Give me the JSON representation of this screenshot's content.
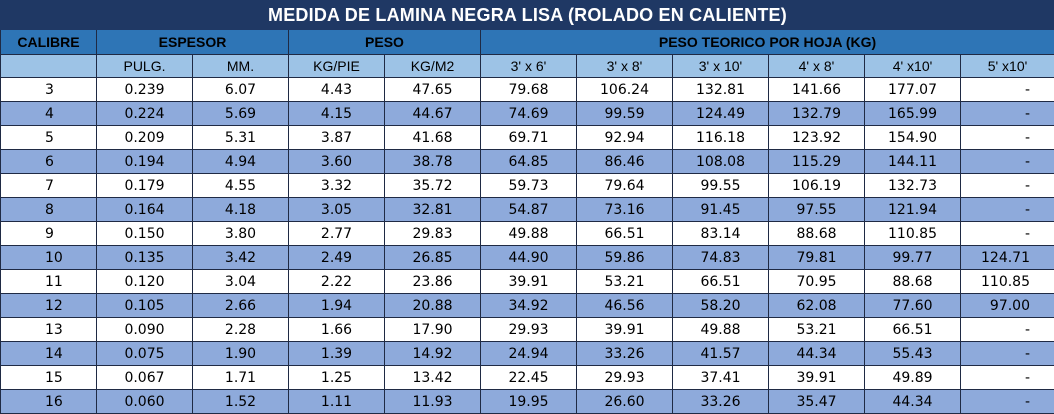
{
  "title": "MEDIDA DE LAMINA NEGRA LISA (ROLADO EN CALIENTE)",
  "headers": {
    "calibre": "CALIBRE",
    "espesor": "ESPESOR",
    "peso": "PESO",
    "peso_teorico": "PESO TEORICO POR HOJA (KG)"
  },
  "subheaders": [
    "PULG.",
    "MM.",
    "KG/PIE",
    "KG/M2",
    "3' x 6'",
    "3' x 8'",
    "3' x 10'",
    "4' x 8'",
    "4' x10'",
    "5' x10'"
  ],
  "rows": [
    [
      "3",
      "0.239",
      "6.07",
      "4.43",
      "47.65",
      "79.68",
      "106.24",
      "132.81",
      "141.66",
      "177.07",
      "-"
    ],
    [
      "4",
      "0.224",
      "5.69",
      "4.15",
      "44.67",
      "74.69",
      "99.59",
      "124.49",
      "132.79",
      "165.99",
      "-"
    ],
    [
      "5",
      "0.209",
      "5.31",
      "3.87",
      "41.68",
      "69.71",
      "92.94",
      "116.18",
      "123.92",
      "154.90",
      "-"
    ],
    [
      "6",
      "0.194",
      "4.94",
      "3.60",
      "38.78",
      "64.85",
      "86.46",
      "108.08",
      "115.29",
      "144.11",
      "-"
    ],
    [
      "7",
      "0.179",
      "4.55",
      "3.32",
      "35.72",
      "59.73",
      "79.64",
      "99.55",
      "106.19",
      "132.73",
      "-"
    ],
    [
      "8",
      "0.164",
      "4.18",
      "3.05",
      "32.81",
      "54.87",
      "73.16",
      "91.45",
      "97.55",
      "121.94",
      "-"
    ],
    [
      "9",
      "0.150",
      "3.80",
      "2.77",
      "29.83",
      "49.88",
      "66.51",
      "83.14",
      "88.68",
      "110.85",
      "-"
    ],
    [
      "10",
      "0.135",
      "3.42",
      "2.49",
      "26.85",
      "44.90",
      "59.86",
      "74.83",
      "79.81",
      "99.77",
      "124.71"
    ],
    [
      "11",
      "0.120",
      "3.04",
      "2.22",
      "23.86",
      "39.91",
      "53.21",
      "66.51",
      "70.95",
      "88.68",
      "110.85"
    ],
    [
      "12",
      "0.105",
      "2.66",
      "1.94",
      "20.88",
      "34.92",
      "46.56",
      "58.20",
      "62.08",
      "77.60",
      "97.00"
    ],
    [
      "13",
      "0.090",
      "2.28",
      "1.66",
      "17.90",
      "29.93",
      "39.91",
      "49.88",
      "53.21",
      "66.51",
      "-"
    ],
    [
      "14",
      "0.075",
      "1.90",
      "1.39",
      "14.92",
      "24.94",
      "33.26",
      "41.57",
      "44.34",
      "55.43",
      "-"
    ],
    [
      "15",
      "0.067",
      "1.71",
      "1.25",
      "13.42",
      "22.45",
      "29.93",
      "37.41",
      "39.91",
      "49.89",
      "-"
    ],
    [
      "16",
      "0.060",
      "1.52",
      "1.11",
      "11.93",
      "19.95",
      "26.60",
      "33.26",
      "35.47",
      "44.34",
      "-"
    ]
  ],
  "colors": {
    "title_bg": "#1f3864",
    "header_bg": "#2e75b6",
    "subheader_bg": "#9dc3e6",
    "row_alt_bg": "#8eaadb",
    "row_bg": "#ffffff"
  }
}
